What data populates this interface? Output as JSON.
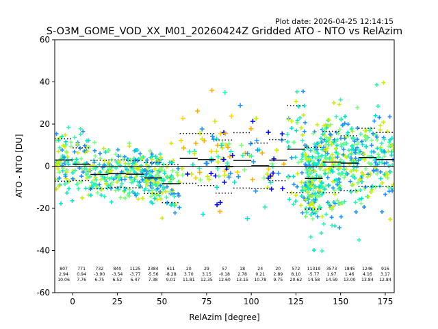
{
  "chart_data": {
    "type": "scatter",
    "plot_date": "Plot date: 2026-04-25 12:14:15",
    "title": "S-O3M_GOME_VOD_XX_M01_20260424Z Gridded ATO - NTO vs RelAzim",
    "xlabel": "RelAzim [degree]",
    "ylabel": "ATO - NTO [DU]",
    "xlim": [
      -10,
      180
    ],
    "ylim": [
      -60,
      60
    ],
    "xticks": [
      0,
      25,
      50,
      75,
      100,
      125,
      150,
      175
    ],
    "yticks": [
      -60,
      -40,
      -20,
      0,
      20,
      40,
      60
    ],
    "zero_line": 0,
    "bin_width": 10,
    "bins": [
      {
        "center": -5,
        "count": "807",
        "mean": "2.94",
        "std": "10.06"
      },
      {
        "center": 5,
        "count": "771",
        "mean": "0.94",
        "std": "7.76"
      },
      {
        "center": 15,
        "count": "732",
        "mean": "-3.90",
        "std": "6.75"
      },
      {
        "center": 25,
        "count": "840",
        "mean": "-3.54",
        "std": "6.52"
      },
      {
        "center": 35,
        "count": "1125",
        "mean": "-3.77",
        "std": "6.47"
      },
      {
        "center": 45,
        "count": "2384",
        "mean": "-5.56",
        "std": "7.38"
      },
      {
        "center": 55,
        "count": "611",
        "mean": "-8.28",
        "std": "9.01"
      },
      {
        "center": 65,
        "count": "20",
        "mean": "3.70",
        "std": "11.81"
      },
      {
        "center": 75,
        "count": "29",
        "mean": "3.15",
        "std": "12.35"
      },
      {
        "center": 85,
        "count": "57",
        "mean": "-0.18",
        "std": "12.60"
      },
      {
        "center": 95,
        "count": "18",
        "mean": "2.78",
        "std": "13.15"
      },
      {
        "center": 105,
        "count": "24",
        "mean": "0.21",
        "std": "10.78"
      },
      {
        "center": 115,
        "count": "20",
        "mean": "2.89",
        "std": "9.75"
      },
      {
        "center": 125,
        "count": "572",
        "mean": "8.10",
        "std": "20.62"
      },
      {
        "center": 135,
        "count": "11319",
        "mean": "-5.77",
        "std": "14.58"
      },
      {
        "center": 145,
        "count": "3573",
        "mean": "1.97",
        "std": "14.59"
      },
      {
        "center": 155,
        "count": "1845",
        "mean": "1.46",
        "std": "13.00"
      },
      {
        "center": 165,
        "count": "1246",
        "mean": "4.16",
        "std": "13.84"
      },
      {
        "center": 175,
        "count": "916",
        "mean": "3.17",
        "std": "12.84"
      }
    ],
    "point_colors": [
      "#1e90ff",
      "#00e5c8",
      "#2cf5b0",
      "#7dff7a",
      "#c8f000",
      "#ffd200",
      "#ffae00",
      "#0000ff"
    ]
  }
}
